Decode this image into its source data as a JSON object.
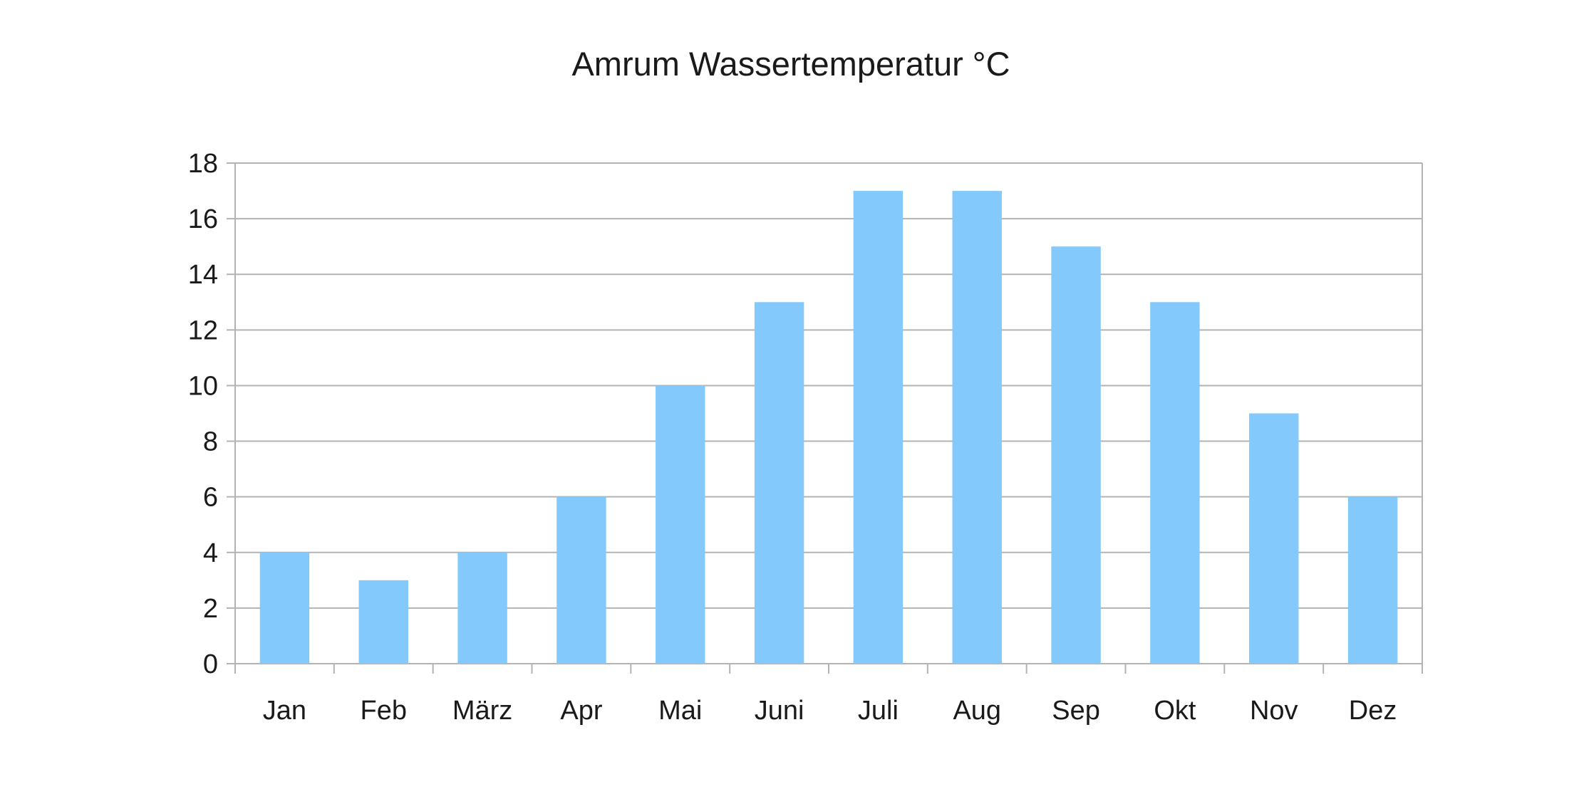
{
  "chart_data": {
    "type": "bar",
    "title": "Amrum Wassertemperatur °C",
    "xlabel": "",
    "ylabel": "",
    "categories": [
      "Jan",
      "Feb",
      "März",
      "Apr",
      "Mai",
      "Juni",
      "Juli",
      "Aug",
      "Sep",
      "Okt",
      "Nov",
      "Dez"
    ],
    "values": [
      4,
      3,
      4,
      6,
      10,
      13,
      17,
      17,
      15,
      13,
      9,
      6
    ],
    "ylim": [
      0,
      18
    ],
    "yticks": [
      "0",
      "2",
      "4",
      "6",
      "8",
      "10",
      "12",
      "14",
      "16",
      "18"
    ],
    "grid": true,
    "legend": "none",
    "colors": {
      "bar": "#83c9fc",
      "grid": "#b3b3b3",
      "axis": "#b3b3b3",
      "text": "#1a1a1a"
    }
  }
}
